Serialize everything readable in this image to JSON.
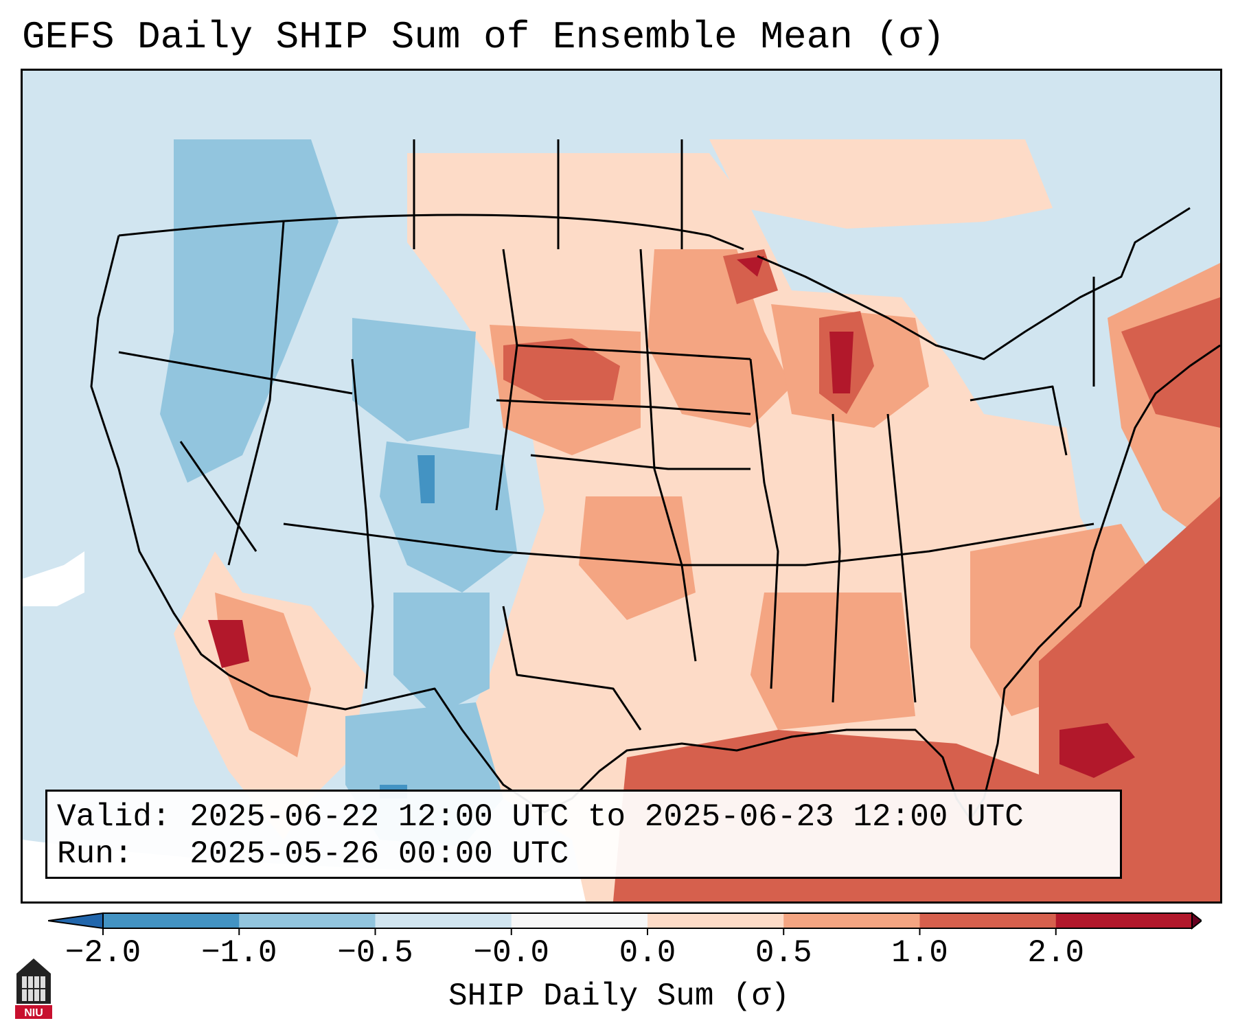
{
  "title": "GEFS Daily SHIP Sum of Ensemble Mean (σ)",
  "info": {
    "valid": "Valid: 2025-06-22 12:00 UTC to 2025-06-23 12:00 UTC",
    "run": "Run:   2025-05-26 00:00 UTC"
  },
  "colorbar": {
    "label": "SHIP Daily Sum (σ)",
    "ticks": [
      "−2.0",
      "−1.0",
      "−0.5",
      "−0.0",
      "0.0",
      "0.5",
      "1.0",
      "2.0"
    ],
    "colors": [
      "#4393c3",
      "#92c5de",
      "#d1e5f0",
      "#f7f7f7",
      "#fddbc7",
      "#f4a582",
      "#d6604d",
      "#b2182b"
    ],
    "extend": "both"
  },
  "logo": {
    "text": "NIU"
  },
  "map": {
    "region": "Contiguous United States",
    "variable": "SHIP daily sum anomaly",
    "units": "σ"
  }
}
